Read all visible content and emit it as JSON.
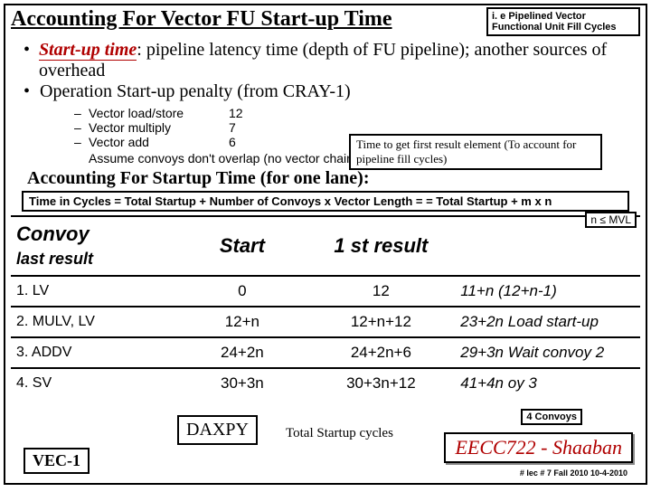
{
  "title": "Accounting For Vector FU Start-up Time",
  "title_note": "i. e Pipelined Vector Functional Unit Fill Cycles",
  "bullet1_label": "Start-up time",
  "bullet1_rest": ": pipeline latency time (depth of FU pipeline); another sources of overhead",
  "bullet2": "Operation   Start-up penalty (from CRAY-1)",
  "subs": [
    {
      "label": "Vector load/store",
      "val": "12"
    },
    {
      "label": "Vector multiply",
      "val": "7"
    },
    {
      "label": "Vector add",
      "val": "6"
    }
  ],
  "time_note": "Time to get first result element (To account for pipeline fill cycles)",
  "assume": "Assume convoys don't overlap (no vector chaining); vector length = n:",
  "acct_title": "Accounting For Startup Time (for one lane):",
  "mvl": "n ≤ MVL",
  "formula": "Time in Cycles = Total Startup + Number of Convoys x Vector Length = = Total Startup + m x n",
  "headers": {
    "conv": "Convoy",
    "start": "Start",
    "first": "1 st result",
    "last": "last result"
  },
  "rows": [
    {
      "conv": "1. LV",
      "start": "0",
      "first": "12",
      "last": "11+n (12+n-1)"
    },
    {
      "conv": "2. MULV, LV",
      "start": "12+n",
      "first": "12+n+12",
      "last": "23+2n Load start-up"
    },
    {
      "conv": "3. ADDV",
      "start": "24+2n",
      "first": "24+2n+6",
      "last": "29+3n Wait convoy 2"
    },
    {
      "conv": "4. SV",
      "start": "30+3n",
      "first": "30+3n+12",
      "last": "41+4n       oy 3"
    }
  ],
  "daxpy": "DAXPY",
  "total_startup_label": "Total Startup cycles",
  "conv4": "4 Convoys",
  "course": "EECC722 - Shaaban",
  "lec": "#  lec # 7    Fall 2010   10-4-2010",
  "vec": "VEC-1"
}
